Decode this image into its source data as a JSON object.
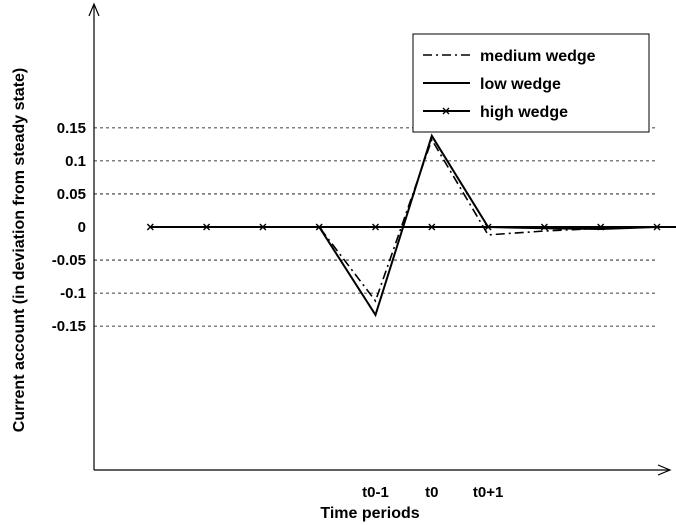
{
  "chart_data": {
    "type": "line",
    "xlabel": "Time periods",
    "ylabel": "Current account (in deviation from steady state)",
    "x": [
      1,
      2,
      3,
      4,
      5,
      6,
      7,
      8,
      9,
      10,
      11,
      12
    ],
    "xlim": [
      0,
      12.2
    ],
    "ylim": [
      -0.185,
      0.155
    ],
    "x_tick_values": [
      5,
      6,
      7
    ],
    "x_tick_labels": [
      "t0-1",
      "t0",
      "t0+1"
    ],
    "y_ticks": [
      -0.15,
      -0.1,
      -0.05,
      0,
      0.05,
      0.1,
      0.15
    ],
    "y_tick_labels": [
      "-0.15",
      "-0.1",
      "-0.05",
      "0",
      "0.05",
      "0.1",
      "0.15"
    ],
    "grid": "horizontal-dashed",
    "legend_position": "top-right",
    "series": [
      {
        "name": "medium wedge",
        "style": "dashdot",
        "color": "#000000",
        "values": [
          0,
          0,
          0,
          0,
          -0.112,
          0.132,
          -0.012,
          -0.006,
          -0.002,
          0,
          0,
          0
        ]
      },
      {
        "name": "low wedge",
        "style": "solid",
        "color": "#000000",
        "values": [
          0,
          0,
          0,
          0,
          -0.133,
          0.138,
          0,
          -0.002,
          -0.003,
          0,
          0,
          0
        ]
      },
      {
        "name": "high wedge",
        "style": "solid-x",
        "color": "#000000",
        "values": [
          0,
          0,
          0,
          0,
          0,
          0,
          0,
          0,
          0,
          0,
          0,
          0
        ]
      }
    ]
  }
}
